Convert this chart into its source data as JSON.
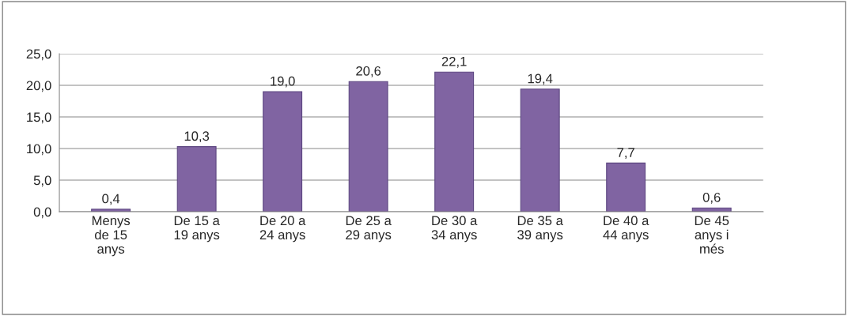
{
  "chart_data": {
    "type": "bar",
    "categories": [
      "Menys\nde 15\nanys",
      "De 15 a\n19 anys",
      "De 20 a\n24 anys",
      "De 25 a\n29 anys",
      "De 30 a\n34 anys",
      "De 35 a\n39 anys",
      "De 40 a\n44 anys",
      "De 45\nanys i\nmés"
    ],
    "values": [
      0.4,
      10.3,
      19.0,
      20.6,
      22.1,
      19.4,
      7.7,
      0.6
    ],
    "value_labels": [
      "0,4",
      "10,3",
      "19,0",
      "20,6",
      "22,1",
      "19,4",
      "7,7",
      "0,6"
    ],
    "color": "#8064a2",
    "ylim": [
      0,
      25
    ],
    "yticks": [
      {
        "value": 0,
        "label": "0,0"
      },
      {
        "value": 5,
        "label": "5,0"
      },
      {
        "value": 10,
        "label": "10,0"
      },
      {
        "value": 15,
        "label": "15,0"
      },
      {
        "value": 20,
        "label": "20,0"
      },
      {
        "value": 25,
        "label": "25,0"
      }
    ],
    "grid": "y",
    "legend": false
  }
}
